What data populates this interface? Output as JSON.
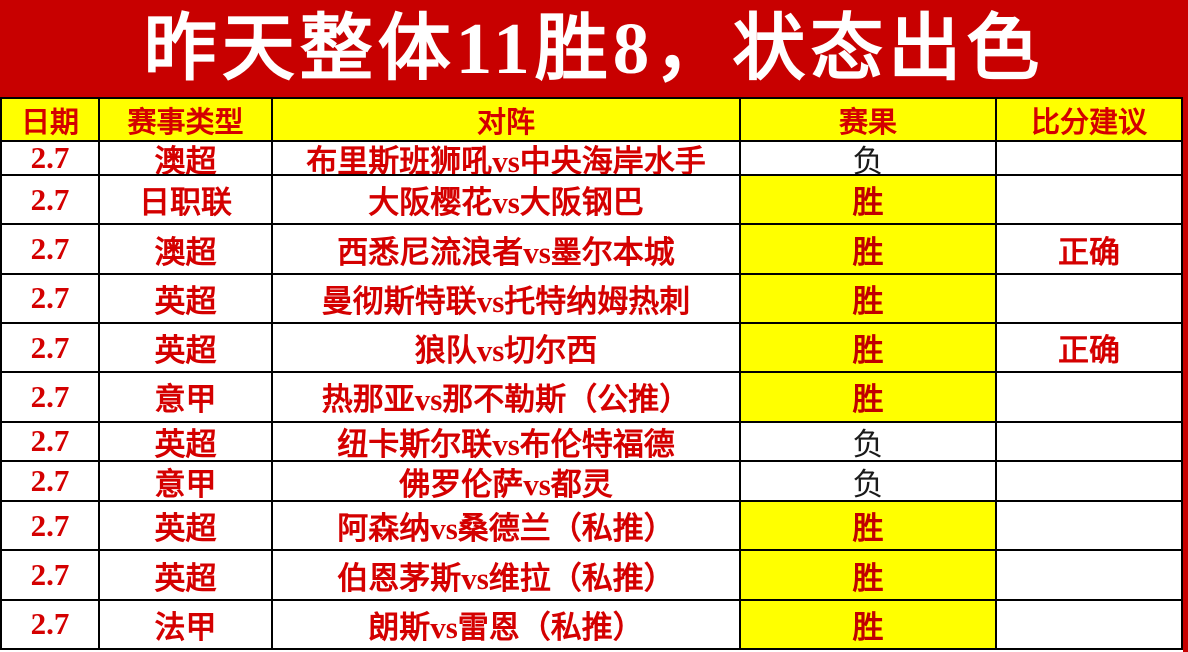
{
  "title": "昨天整体11胜8，状态出色",
  "chart_data": {
    "type": "table",
    "title": "昨天整体11胜8，状态出色",
    "columns": [
      "日期",
      "赛事类型",
      "对阵",
      "赛果",
      "比分建议"
    ],
    "rows": [
      {
        "date": "2.7",
        "league": "澳超",
        "match": "布里斯班狮吼vs中央海岸水手",
        "result": "负",
        "result_type": "loss",
        "advice": ""
      },
      {
        "date": "2.7",
        "league": "日职联",
        "match": "大阪樱花vs大阪钢巴",
        "result": "胜",
        "result_type": "win",
        "advice": ""
      },
      {
        "date": "2.7",
        "league": "澳超",
        "match": "西悉尼流浪者vs墨尔本城",
        "result": "胜",
        "result_type": "win",
        "advice": "正确"
      },
      {
        "date": "2.7",
        "league": "英超",
        "match": "曼彻斯特联vs托特纳姆热刺",
        "result": "胜",
        "result_type": "win",
        "advice": ""
      },
      {
        "date": "2.7",
        "league": "英超",
        "match": "狼队vs切尔西",
        "result": "胜",
        "result_type": "win",
        "advice": "正确"
      },
      {
        "date": "2.7",
        "league": "意甲",
        "match": "热那亚vs那不勒斯（公推）",
        "result": "胜",
        "result_type": "win",
        "advice": ""
      },
      {
        "date": "2.7",
        "league": "英超",
        "match": "纽卡斯尔联vs布伦特福德",
        "result": "负",
        "result_type": "loss",
        "advice": ""
      },
      {
        "date": "2.7",
        "league": "意甲",
        "match": "佛罗伦萨vs都灵",
        "result": "负",
        "result_type": "loss",
        "advice": ""
      },
      {
        "date": "2.7",
        "league": "英超",
        "match": "阿森纳vs桑德兰（私推）",
        "result": "胜",
        "result_type": "win",
        "advice": ""
      },
      {
        "date": "2.7",
        "league": "英超",
        "match": "伯恩茅斯vs维拉（私推）",
        "result": "胜",
        "result_type": "win",
        "advice": ""
      },
      {
        "date": "2.7",
        "league": "法甲",
        "match": "朗斯vs雷恩（私推）",
        "result": "胜",
        "result_type": "win",
        "advice": ""
      }
    ],
    "legend": "yellow result cell = win (胜), white result cell = loss (负)"
  },
  "colors": {
    "banner_red": "#c80000",
    "header_yellow": "#ffff00",
    "win_yellow": "#ffff00",
    "text_red": "#d40000",
    "win_text_red": "#c00000",
    "loss_text": "#1a1a1a",
    "title_white": "#ffffff",
    "border_black": "#000000"
  }
}
